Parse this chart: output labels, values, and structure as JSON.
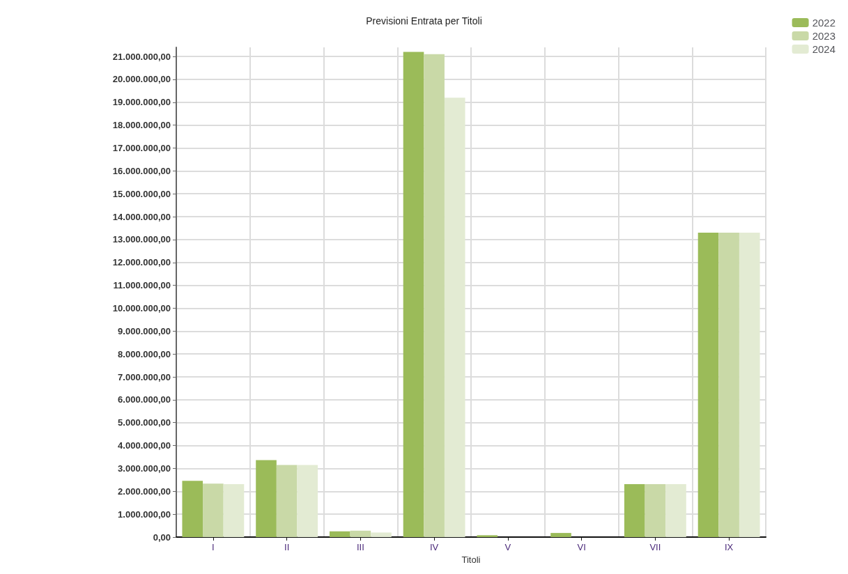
{
  "chart_data": {
    "type": "bar",
    "title": "Previsioni Entrata per Titoli",
    "xlabel": "Titoli",
    "categories": [
      "I",
      "II",
      "III",
      "IV",
      "V",
      "VI",
      "VII",
      "IX"
    ],
    "series": [
      {
        "name": "2022",
        "color": "#9bbb59",
        "values": [
          2460000,
          3360000,
          250000,
          21200000,
          80000,
          180000,
          2310000,
          13300000
        ]
      },
      {
        "name": "2023",
        "color": "#c9d9a7",
        "values": [
          2340000,
          3150000,
          280000,
          21100000,
          null,
          null,
          2310000,
          13300000
        ]
      },
      {
        "name": "2024",
        "color": "#e3ebd3",
        "values": [
          2310000,
          3150000,
          200000,
          19200000,
          null,
          null,
          2310000,
          13300000
        ]
      }
    ],
    "ylim": [
      0,
      21400000
    ],
    "yticks": [
      {
        "value": 0,
        "label": "0,00"
      },
      {
        "value": 1000000,
        "label": "1.000.000,00"
      },
      {
        "value": 2000000,
        "label": "2.000.000,00"
      },
      {
        "value": 3000000,
        "label": "3.000.000,00"
      },
      {
        "value": 4000000,
        "label": "4.000.000,00"
      },
      {
        "value": 5000000,
        "label": "5.000.000,00"
      },
      {
        "value": 6000000,
        "label": "6.000.000,00"
      },
      {
        "value": 7000000,
        "label": "7.000.000,00"
      },
      {
        "value": 8000000,
        "label": "8.000.000,00"
      },
      {
        "value": 9000000,
        "label": "9.000.000,00"
      },
      {
        "value": 10000000,
        "label": "10.000.000,00"
      },
      {
        "value": 11000000,
        "label": "11.000.000,00"
      },
      {
        "value": 12000000,
        "label": "12.000.000,00"
      },
      {
        "value": 13000000,
        "label": "13.000.000,00"
      },
      {
        "value": 14000000,
        "label": "14.000.000,00"
      },
      {
        "value": 15000000,
        "label": "15.000.000,00"
      },
      {
        "value": 16000000,
        "label": "16.000.000,00"
      },
      {
        "value": 17000000,
        "label": "17.000.000,00"
      },
      {
        "value": 18000000,
        "label": "18.000.000,00"
      },
      {
        "value": 19000000,
        "label": "19.000.000,00"
      },
      {
        "value": 20000000,
        "label": "20.000.000,00"
      },
      {
        "value": 21000000,
        "label": "21.000.000,00"
      }
    ],
    "grid": true,
    "legend": "top right"
  }
}
